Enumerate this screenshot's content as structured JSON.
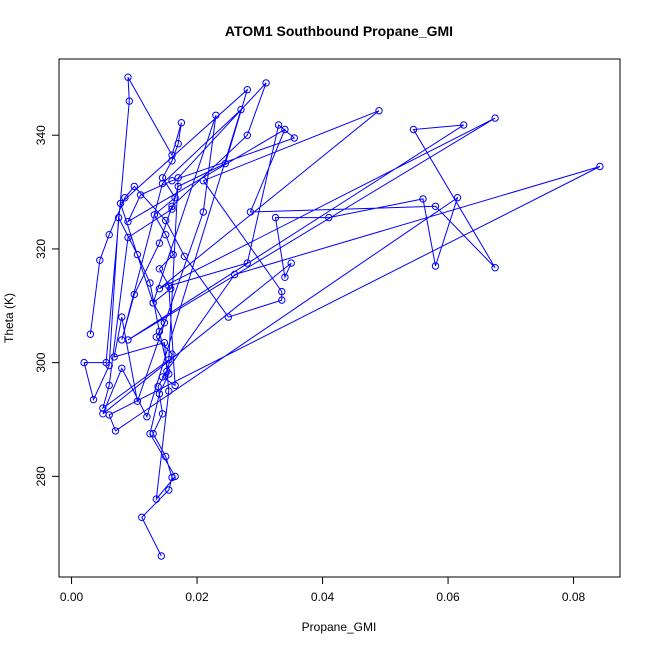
{
  "chart_data": {
    "type": "line",
    "title": "ATOM1 Southbound Propane_GMI",
    "xlabel": "Propane_GMI",
    "ylabel": "Theta (K)",
    "xlim": [
      -0.002,
      0.0874
    ],
    "ylim": [
      262.3,
      353.4
    ],
    "x_ticks": [
      0.0,
      0.02,
      0.04,
      0.06,
      0.08
    ],
    "x_tick_labels": [
      "0.00",
      "0.02",
      "0.04",
      "0.06",
      "0.08"
    ],
    "y_ticks": [
      280,
      300,
      320,
      340
    ],
    "y_tick_labels": [
      "280",
      "300",
      "320",
      "340"
    ],
    "grid": false,
    "marker": "open-circle",
    "series": [
      {
        "color": "#0000ff",
        "points": [
          [
            0.0143,
            266.0
          ],
          [
            0.0112,
            272.8
          ],
          [
            0.0155,
            277.6
          ],
          [
            0.016,
            279.8
          ],
          [
            0.015,
            283.5
          ],
          [
            0.013,
            287.5
          ],
          [
            0.0145,
            291.0
          ],
          [
            0.0138,
            295.8
          ],
          [
            0.0152,
            298.5
          ],
          [
            0.016,
            301.5
          ],
          [
            0.0135,
            304.5
          ],
          [
            0.0148,
            307.0
          ],
          [
            0.013,
            310.5
          ],
          [
            0.0158,
            313.0
          ],
          [
            0.014,
            316.5
          ],
          [
            0.0162,
            319.0
          ],
          [
            0.015,
            322.5
          ],
          [
            0.0132,
            326.0
          ],
          [
            0.0165,
            329.0
          ],
          [
            0.0145,
            332.5
          ],
          [
            0.016,
            335.5
          ],
          [
            0.017,
            338.5
          ],
          [
            0.0175,
            342.2
          ],
          [
            0.016,
            336.5
          ],
          [
            0.009,
            350.2
          ],
          [
            0.0092,
            346.0
          ],
          [
            0.0055,
            300.0
          ],
          [
            0.002,
            300.0
          ],
          [
            0.0035,
            293.5
          ],
          [
            0.006,
            299.5
          ],
          [
            0.0075,
            325.5
          ],
          [
            0.0105,
            319.0
          ],
          [
            0.0125,
            314.0
          ],
          [
            0.014,
            305.5
          ],
          [
            0.0155,
            298.0
          ],
          [
            0.014,
            294.5
          ],
          [
            0.0125,
            287.5
          ],
          [
            0.0165,
            280.0
          ],
          [
            0.0135,
            276.0
          ],
          [
            0.0155,
            295.0
          ],
          [
            0.0148,
            303.5
          ],
          [
            0.0068,
            301.0
          ],
          [
            0.008,
            308.0
          ],
          [
            0.0105,
            293.2
          ],
          [
            0.021,
            326.5
          ],
          [
            0.023,
            343.5
          ],
          [
            0.013,
            310.5
          ],
          [
            0.0078,
            328.0
          ],
          [
            0.028,
            348.0
          ],
          [
            0.0245,
            335.0
          ],
          [
            0.017,
            331.0
          ],
          [
            0.016,
            327.0
          ],
          [
            0.009,
            322.0
          ],
          [
            0.006,
            296.0
          ],
          [
            0.005,
            292.0
          ],
          [
            0.0155,
            300.5
          ],
          [
            0.017,
            332.5
          ],
          [
            0.031,
            349.2
          ],
          [
            0.028,
            340.0
          ],
          [
            0.016,
            327.5
          ],
          [
            0.014,
            321.0
          ],
          [
            0.01,
            312.0
          ],
          [
            0.008,
            304.0
          ],
          [
            0.0145,
            331.5
          ],
          [
            0.027,
            344.5
          ],
          [
            0.012,
            290.5
          ],
          [
            0.008,
            299.0
          ],
          [
            0.005,
            291.0
          ],
          [
            0.035,
            317.5
          ],
          [
            0.034,
            315.0
          ],
          [
            0.0325,
            325.5
          ],
          [
            0.041,
            325.5
          ],
          [
            0.056,
            328.8
          ],
          [
            0.058,
            317.0
          ],
          [
            0.0615,
            329.0
          ],
          [
            0.007,
            288.0
          ],
          [
            0.006,
            290.8
          ],
          [
            0.0842,
            334.5
          ],
          [
            0.026,
            315.5
          ],
          [
            0.0145,
            297.5
          ],
          [
            0.0165,
            296.0
          ],
          [
            0.0155,
            313.5
          ],
          [
            0.028,
            317.5
          ],
          [
            0.033,
            341.8
          ],
          [
            0.0355,
            339.5
          ],
          [
            0.016,
            332.0
          ],
          [
            0.011,
            329.5
          ],
          [
            0.009,
            324.8
          ],
          [
            0.034,
            341.0
          ],
          [
            0.0285,
            326.5
          ],
          [
            0.058,
            327.5
          ],
          [
            0.0675,
            316.7
          ],
          [
            0.0545,
            341.0
          ],
          [
            0.0625,
            341.8
          ],
          [
            0.009,
            304.0
          ],
          [
            0.0675,
            343.0
          ],
          [
            0.014,
            313.0
          ],
          [
            0.049,
            344.3
          ],
          [
            0.021,
            332.0
          ],
          [
            0.0335,
            312.5
          ],
          [
            0.0335,
            311.0
          ],
          [
            0.025,
            308.0
          ],
          [
            0.018,
            318.7
          ],
          [
            0.015,
            325.0
          ],
          [
            0.01,
            331.0
          ],
          [
            0.0085,
            329.0
          ],
          [
            0.006,
            322.5
          ],
          [
            0.0045,
            318.0
          ],
          [
            0.003,
            305.0
          ]
        ]
      }
    ]
  }
}
